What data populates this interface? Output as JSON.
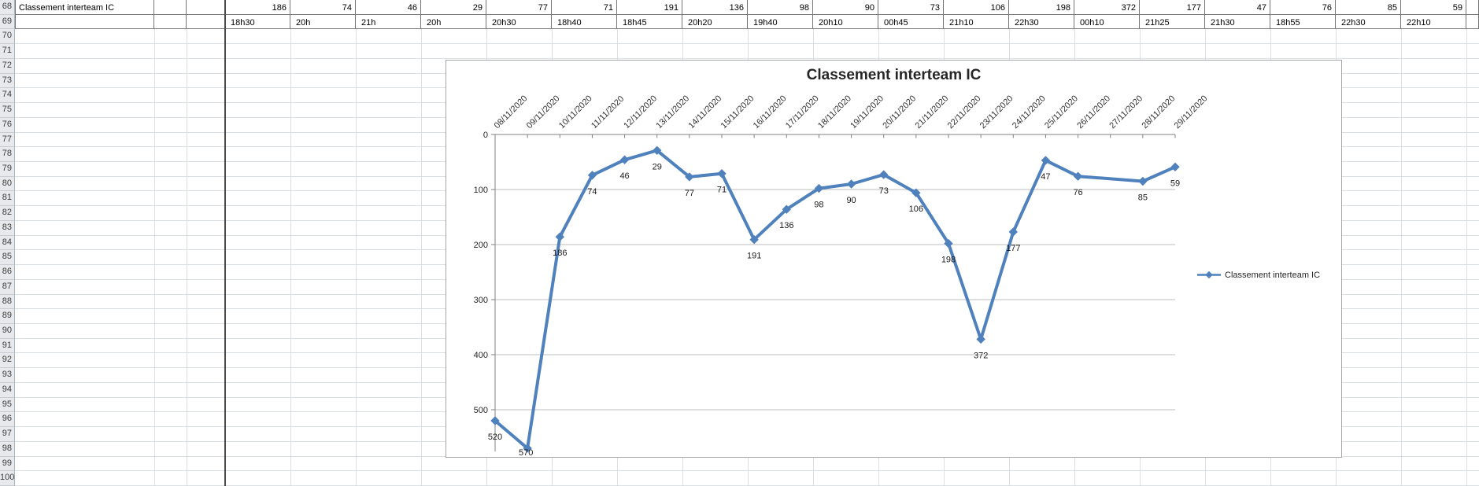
{
  "sheet": {
    "first_row_number": 68,
    "last_row_number": 100,
    "row68_label": "Classement interteam IC",
    "columns": [
      {
        "value": "186",
        "time": "18h30"
      },
      {
        "value": "74",
        "time": "20h"
      },
      {
        "value": "46",
        "time": "21h"
      },
      {
        "value": "29",
        "time": "20h"
      },
      {
        "value": "77",
        "time": "20h30"
      },
      {
        "value": "71",
        "time": "18h40"
      },
      {
        "value": "191",
        "time": "18h45"
      },
      {
        "value": "136",
        "time": "20h20"
      },
      {
        "value": "98",
        "time": "19h40"
      },
      {
        "value": "90",
        "time": "20h10"
      },
      {
        "value": "73",
        "time": "00h45"
      },
      {
        "value": "106",
        "time": "21h10"
      },
      {
        "value": "198",
        "time": "22h30"
      },
      {
        "value": "372",
        "time": "00h10"
      },
      {
        "value": "177",
        "time": "21h25"
      },
      {
        "value": "47",
        "time": "21h30"
      },
      {
        "value": "76",
        "time": "18h55"
      },
      {
        "value": "85",
        "time": "22h30"
      },
      {
        "value": "59",
        "time": "22h10"
      }
    ]
  },
  "chart": {
    "title": "Classement interteam IC",
    "legend_label": "Classement interteam IC",
    "y_ticks": [
      0,
      100,
      200,
      300,
      400,
      500
    ],
    "categories": [
      "08/11/2020",
      "09/11/2020",
      "10/11/2020",
      "11/11/2020",
      "12/11/2020",
      "13/11/2020",
      "14/11/2020",
      "15/11/2020",
      "16/11/2020",
      "17/11/2020",
      "18/11/2020",
      "19/11/2020",
      "20/11/2020",
      "21/11/2020",
      "22/11/2020",
      "23/11/2020",
      "24/11/2020",
      "25/11/2020",
      "26/11/2020",
      "27/11/2020",
      "28/11/2020",
      "29/11/2020"
    ],
    "values": [
      520,
      570,
      186,
      74,
      46,
      29,
      77,
      71,
      191,
      136,
      98,
      90,
      73,
      106,
      198,
      372,
      177,
      47,
      76,
      null,
      85,
      59
    ],
    "line_color": "#4f81bd",
    "gridline_color": "#bdbdbd",
    "axis_color": "#808080",
    "label_color": "#262626"
  },
  "chart_data": {
    "type": "line",
    "title": "Classement interteam IC",
    "x": [
      "08/11/2020",
      "09/11/2020",
      "10/11/2020",
      "11/11/2020",
      "12/11/2020",
      "13/11/2020",
      "14/11/2020",
      "15/11/2020",
      "16/11/2020",
      "17/11/2020",
      "18/11/2020",
      "19/11/2020",
      "20/11/2020",
      "21/11/2020",
      "22/11/2020",
      "23/11/2020",
      "24/11/2020",
      "25/11/2020",
      "26/11/2020",
      "27/11/2020",
      "28/11/2020",
      "29/11/2020"
    ],
    "series": [
      {
        "name": "Classement interteam IC",
        "values": [
          520,
          570,
          186,
          74,
          46,
          29,
          77,
          71,
          191,
          136,
          98,
          90,
          73,
          106,
          198,
          372,
          177,
          47,
          76,
          null,
          85,
          59
        ]
      }
    ],
    "ylabel": "",
    "xlabel": "",
    "y_axis": {
      "ticks": [
        0,
        100,
        200,
        300,
        400,
        500
      ],
      "reversed": true,
      "range": [
        0,
        600
      ]
    },
    "grid": true,
    "marker": "diamond",
    "legend_position": "right",
    "data_labels": true
  }
}
